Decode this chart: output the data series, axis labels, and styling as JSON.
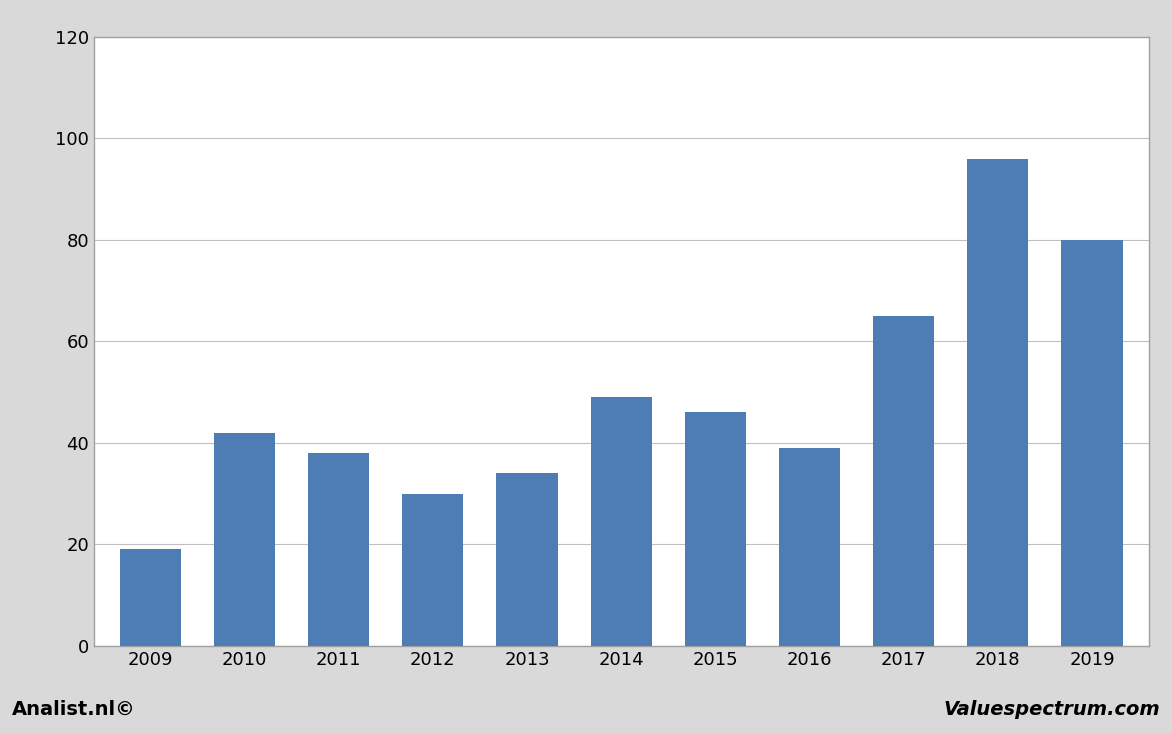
{
  "categories": [
    "2009",
    "2010",
    "2011",
    "2012",
    "2013",
    "2014",
    "2015",
    "2016",
    "2017",
    "2018",
    "2019"
  ],
  "values": [
    19,
    42,
    38,
    30,
    34,
    49,
    46,
    39,
    65,
    96,
    80
  ],
  "bar_color": "#4e7db5",
  "ylim": [
    0,
    120
  ],
  "yticks": [
    0,
    20,
    40,
    60,
    80,
    100,
    120
  ],
  "background_color": "#ffffff",
  "figure_bg_color": "#d9d9d9",
  "footer_bg_color": "#d9d9d9",
  "grid_color": "#c0c0c0",
  "border_color": "#a0a0a0",
  "footer_left": "Analist.nl©",
  "footer_right": "Valuespectrum.com",
  "footer_fontsize": 14,
  "tick_fontsize": 13,
  "bar_edge_color": "none",
  "bar_width": 0.65
}
